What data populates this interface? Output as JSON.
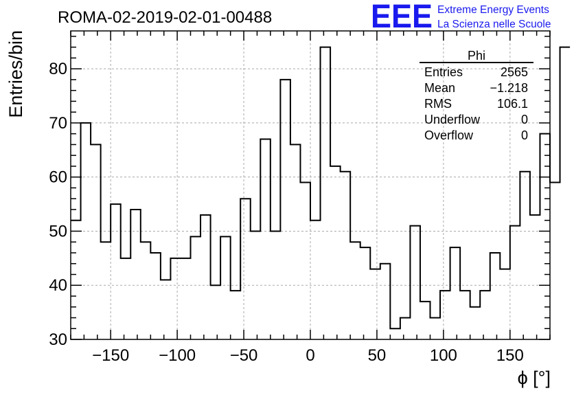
{
  "title": "ROMA-02-2019-02-01-00488",
  "logo": {
    "mark": "EEE",
    "line1": "Extreme Energy Events",
    "line2": "La Scienza nelle Scuole",
    "color": "#1a1aee"
  },
  "stats": {
    "name": "Phi",
    "rows": [
      {
        "label": "Entries",
        "value": "2565"
      },
      {
        "label": "Mean",
        "value": "−1.218"
      },
      {
        "label": "RMS",
        "value": "106.1"
      },
      {
        "label": "Underflow",
        "value": "0"
      },
      {
        "label": "Overflow",
        "value": "0"
      }
    ]
  },
  "chart_data": {
    "type": "histogram",
    "title": "ROMA-02-2019-02-01-00488",
    "xlabel": "ϕ [°]",
    "ylabel": "Entries/bin",
    "xlim": [
      -180,
      180
    ],
    "ylim": [
      30,
      87
    ],
    "bin_width": 7.5,
    "x_ticks": [
      -150,
      -100,
      -50,
      0,
      50,
      100,
      150
    ],
    "x_tick_labels": [
      "−150",
      "−100",
      "−50",
      "0",
      "50",
      "100",
      "150"
    ],
    "y_ticks": [
      30,
      40,
      50,
      60,
      70,
      80
    ],
    "y_tick_labels": [
      "30",
      "40",
      "50",
      "60",
      "70",
      "80"
    ],
    "grid": true,
    "values": [
      52,
      70,
      66,
      48,
      55,
      45,
      54,
      48,
      46,
      41,
      45,
      45,
      49,
      53,
      40,
      49,
      39,
      56,
      50,
      67,
      50,
      78,
      66,
      59,
      52,
      84,
      62,
      61,
      48,
      47,
      43,
      44,
      32,
      34,
      51,
      37,
      34,
      39,
      47,
      39,
      36,
      39,
      46,
      43,
      51,
      61,
      53,
      68,
      59,
      84
    ]
  }
}
